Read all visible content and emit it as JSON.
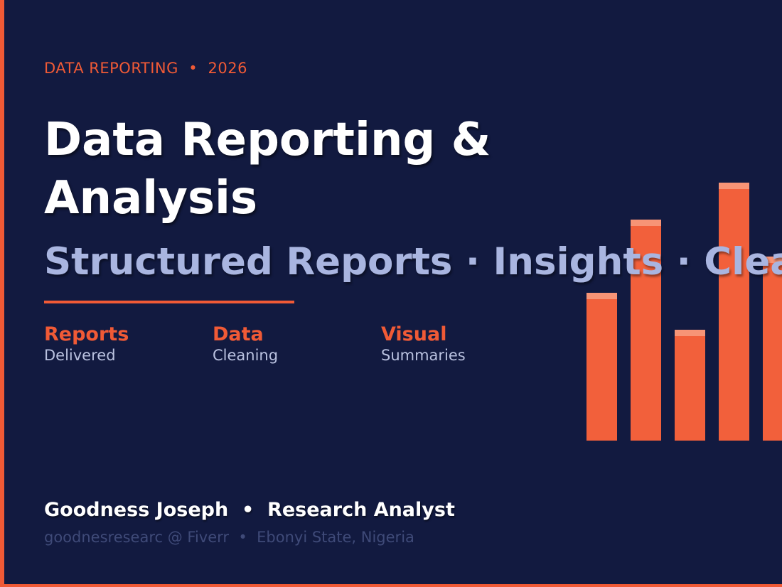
{
  "eyebrow": "DATA REPORTING  •  2026",
  "title": "Data Reporting & Analysis",
  "subtitle": "Structured Reports · Insights · Clea",
  "features": [
    {
      "label": "Reports",
      "sub": "Delivered"
    },
    {
      "label": "Data",
      "sub": "Cleaning"
    },
    {
      "label": "Visual",
      "sub": "Summaries"
    }
  ],
  "footer": {
    "name": "Goodness Joseph  •  Research Analyst",
    "contact": "goodnesresearc @ Fiverr  •  Ebonyi State, Nigeria"
  }
}
